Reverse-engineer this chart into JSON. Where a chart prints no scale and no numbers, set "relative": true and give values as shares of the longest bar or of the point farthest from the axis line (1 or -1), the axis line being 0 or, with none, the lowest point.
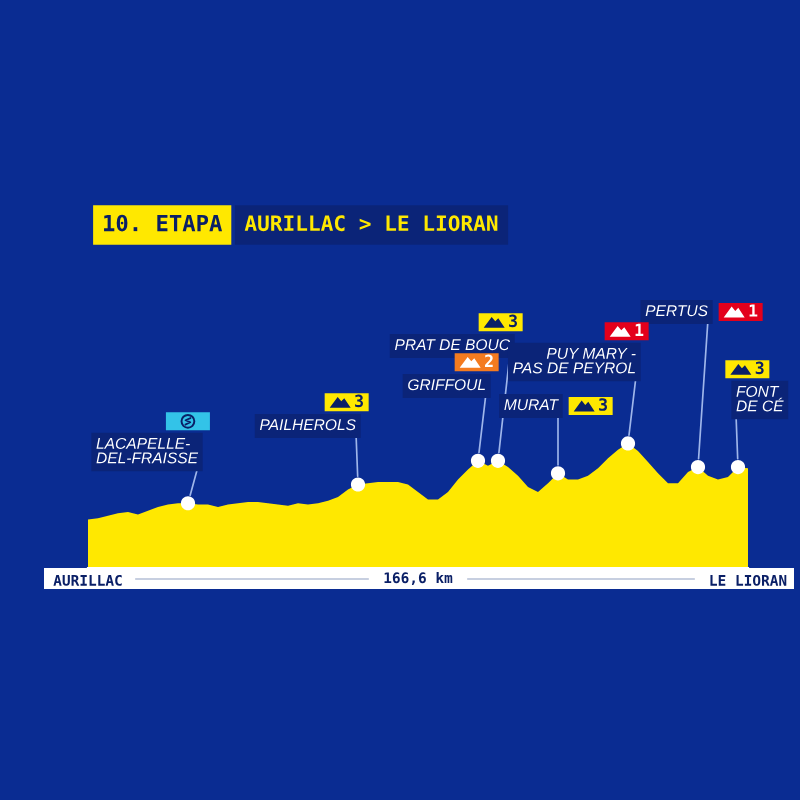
{
  "chart_data": {
    "type": "area",
    "title": "10. ETAPA",
    "subtitle": "AURILLAC > LE LIORAN",
    "xlabel": "166,6 km",
    "relative": true,
    "categories": [
      "AURILLAC",
      null,
      null,
      null,
      null,
      null,
      null,
      null,
      null,
      null,
      null,
      null,
      null,
      null,
      null,
      null,
      null,
      null,
      null,
      null,
      null,
      null,
      null,
      null,
      null,
      null,
      null,
      null,
      null,
      null,
      null,
      null,
      null,
      null,
      null,
      null,
      null,
      null,
      null,
      null,
      null,
      null,
      null,
      null,
      null,
      null,
      null,
      null,
      null,
      null,
      null,
      null,
      null,
      null,
      null,
      null,
      null,
      null,
      null,
      null,
      null,
      null,
      null,
      null,
      null,
      null,
      "LE LIORAN"
    ],
    "series": [
      {
        "color": "#ffe800",
        "values": [
          0.39,
          0.4,
          0.42,
          0.44,
          0.45,
          0.43,
          0.46,
          0.49,
          0.51,
          0.52,
          0.52,
          0.51,
          0.51,
          0.49,
          0.51,
          0.52,
          0.53,
          0.53,
          0.52,
          0.51,
          0.5,
          0.52,
          0.51,
          0.52,
          0.54,
          0.57,
          0.63,
          0.67,
          0.68,
          0.69,
          0.69,
          0.69,
          0.67,
          0.61,
          0.55,
          0.55,
          0.61,
          0.71,
          0.79,
          0.86,
          0.82,
          0.86,
          0.81,
          0.74,
          0.65,
          0.61,
          0.68,
          0.76,
          0.71,
          0.71,
          0.74,
          0.8,
          0.88,
          0.95,
          1.0,
          0.94,
          0.85,
          0.76,
          0.68,
          0.68,
          0.77,
          0.81,
          0.74,
          0.71,
          0.73,
          0.81,
          0.8
        ]
      },
      {
        "type": "scatter",
        "color": "#ffffff",
        "marker": "circle",
        "values": [
          null,
          null,
          null,
          null,
          null,
          null,
          null,
          null,
          null,
          null,
          0.52,
          null,
          null,
          null,
          null,
          null,
          null,
          null,
          null,
          null,
          null,
          null,
          null,
          null,
          null,
          null,
          null,
          0.67,
          null,
          null,
          null,
          null,
          null,
          null,
          null,
          null,
          null,
          null,
          null,
          0.86,
          null,
          0.86,
          null,
          null,
          null,
          null,
          null,
          0.76,
          null,
          null,
          null,
          null,
          null,
          null,
          1.0,
          null,
          null,
          null,
          null,
          null,
          null,
          0.81,
          null,
          null,
          null,
          0.81,
          null
        ]
      }
    ],
    "annotations": [
      "LACAPELLE-\nDEL-FRAISSE",
      "PAILHEROLS",
      "3",
      "GRIFFOUL",
      "2",
      "PRAT DE BOUC",
      "3",
      "MURAT",
      "3",
      "PUY MARY -\nPAS DE PEYROL",
      "1",
      "PERTUS",
      "1",
      "FONT\nDE CÉ",
      "3"
    ]
  }
}
